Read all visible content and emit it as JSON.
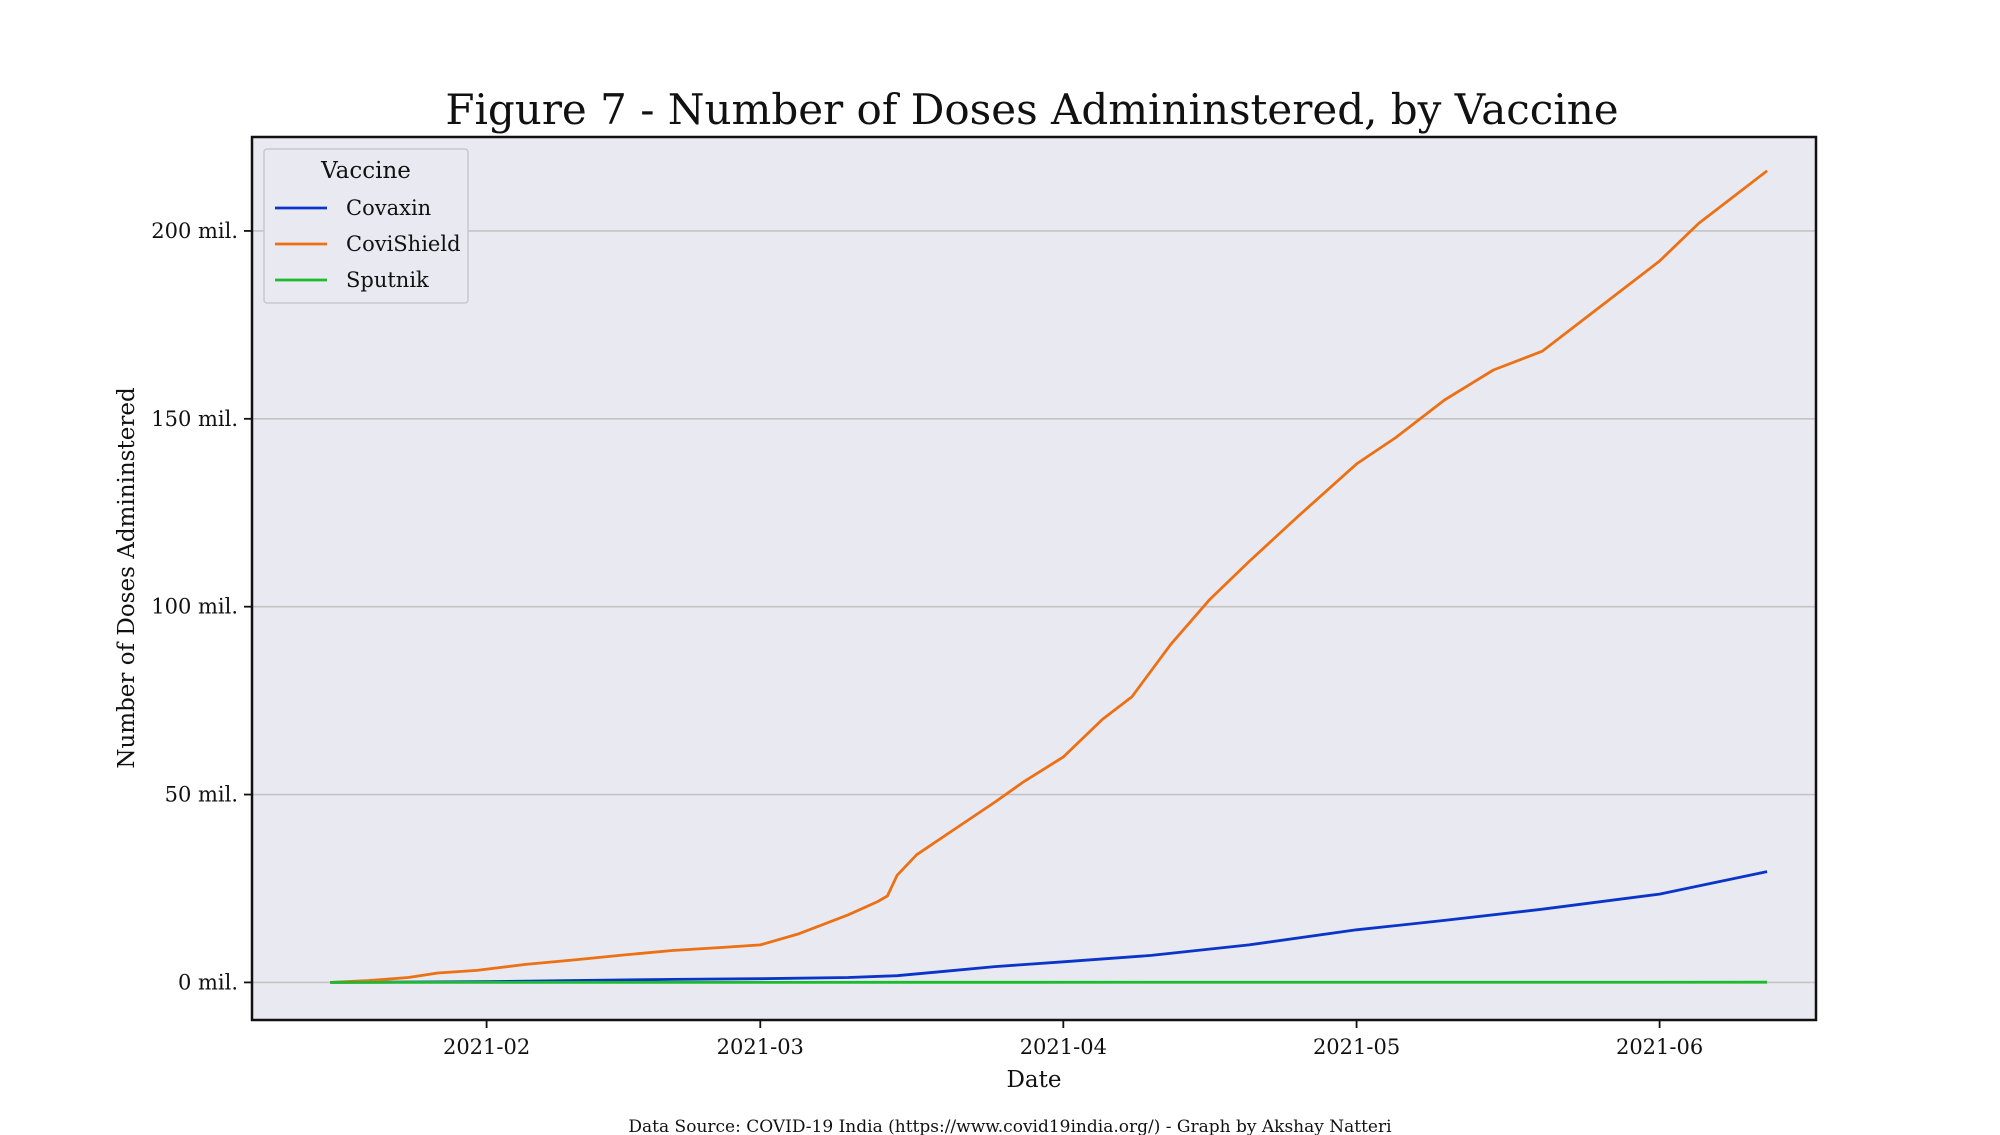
{
  "chart_data": {
    "type": "line",
    "title": "Figure 7 - Number of Doses Admininstered, by Vaccine",
    "xlabel": "Date",
    "ylabel": "Number of Doses Admininstered",
    "source_note": "Data Source:  COVID-19 India (https://www.covid19india.org/) - Graph by Akshay Natteri",
    "legend": {
      "title": "Vaccine",
      "position": "top-left"
    },
    "x_range": [
      "2021-01-08",
      "2021-06-17"
    ],
    "ylim": [
      -10,
      225
    ],
    "y_ticks": [
      0,
      50,
      100,
      150,
      200
    ],
    "y_tick_labels": [
      "0 mil.",
      "50 mil.",
      "100 mil.",
      "150 mil.",
      "200 mil."
    ],
    "x_ticks": [
      "2021-02-01",
      "2021-03-01",
      "2021-04-01",
      "2021-05-01",
      "2021-06-01"
    ],
    "x_tick_labels": [
      "2021-02",
      "2021-03",
      "2021-04",
      "2021-05",
      "2021-06"
    ],
    "grid": "horizontal",
    "units": "million doses",
    "series": [
      {
        "name": "Covaxin",
        "color": "#0a35c8",
        "points": [
          [
            "2021-01-16",
            0
          ],
          [
            "2021-01-25",
            0.1
          ],
          [
            "2021-02-01",
            0.2
          ],
          [
            "2021-02-10",
            0.5
          ],
          [
            "2021-02-20",
            0.8
          ],
          [
            "2021-03-01",
            1.0
          ],
          [
            "2021-03-10",
            1.3
          ],
          [
            "2021-03-15",
            1.8
          ],
          [
            "2021-03-20",
            3.0
          ],
          [
            "2021-03-25",
            4.2
          ],
          [
            "2021-04-01",
            5.5
          ],
          [
            "2021-04-10",
            7.2
          ],
          [
            "2021-04-20",
            10.0
          ],
          [
            "2021-05-01",
            14.0
          ],
          [
            "2021-05-10",
            16.5
          ],
          [
            "2021-05-20",
            19.5
          ],
          [
            "2021-06-01",
            23.5
          ],
          [
            "2021-06-12",
            29.5
          ]
        ]
      },
      {
        "name": "CoviShield",
        "color": "#ec7014",
        "points": [
          [
            "2021-01-16",
            0
          ],
          [
            "2021-01-20",
            0.5
          ],
          [
            "2021-01-24",
            1.3
          ],
          [
            "2021-01-27",
            2.5
          ],
          [
            "2021-01-31",
            3.2
          ],
          [
            "2021-02-05",
            4.8
          ],
          [
            "2021-02-10",
            6.0
          ],
          [
            "2021-02-15",
            7.3
          ],
          [
            "2021-02-20",
            8.5
          ],
          [
            "2021-02-25",
            9.3
          ],
          [
            "2021-03-01",
            10.0
          ],
          [
            "2021-03-05",
            13.0
          ],
          [
            "2021-03-10",
            18.0
          ],
          [
            "2021-03-13",
            21.5
          ],
          [
            "2021-03-14",
            23.0
          ],
          [
            "2021-03-15",
            28.5
          ],
          [
            "2021-03-17",
            34.0
          ],
          [
            "2021-03-21",
            41.0
          ],
          [
            "2021-03-25",
            48.0
          ],
          [
            "2021-03-28",
            53.5
          ],
          [
            "2021-04-01",
            60.0
          ],
          [
            "2021-04-05",
            70.0
          ],
          [
            "2021-04-08",
            76.0
          ],
          [
            "2021-04-12",
            90.0
          ],
          [
            "2021-04-16",
            102.0
          ],
          [
            "2021-04-20",
            112.0
          ],
          [
            "2021-04-25",
            124.0
          ],
          [
            "2021-05-01",
            138.0
          ],
          [
            "2021-05-05",
            145.0
          ],
          [
            "2021-05-10",
            155.0
          ],
          [
            "2021-05-15",
            163.0
          ],
          [
            "2021-05-20",
            168.0
          ],
          [
            "2021-05-25",
            178.0
          ],
          [
            "2021-06-01",
            192.0
          ],
          [
            "2021-06-05",
            202.0
          ],
          [
            "2021-06-12",
            216.0
          ]
        ]
      },
      {
        "name": "Sputnik",
        "color": "#1abc2c",
        "points": [
          [
            "2021-01-16",
            0
          ],
          [
            "2021-06-12",
            0.05
          ]
        ]
      }
    ]
  }
}
